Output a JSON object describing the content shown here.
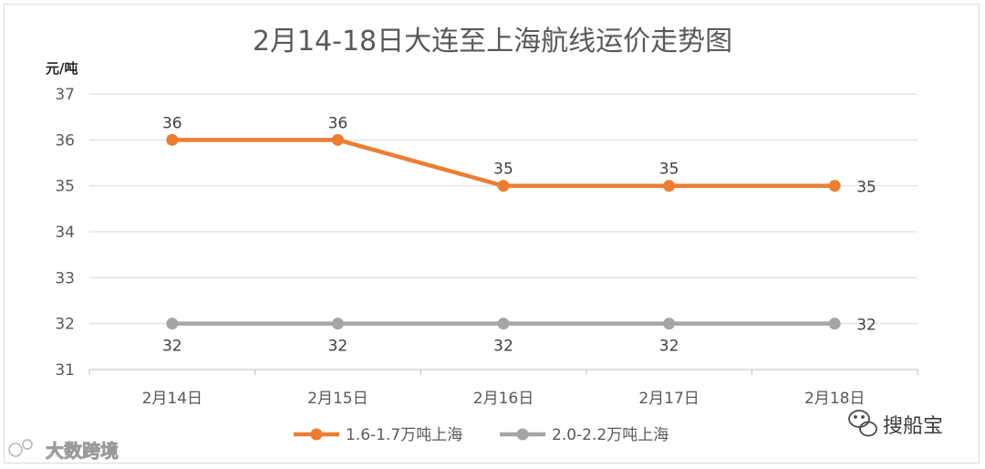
{
  "chart_data": {
    "type": "line",
    "title": "2月14-18日大连至上海航线运价走势图",
    "ylabel": "元/吨",
    "categories": [
      "2月14日",
      "2月15日",
      "2月16日",
      "2月17日",
      "2月18日"
    ],
    "ylim": [
      31,
      37
    ],
    "yticks": [
      "31",
      "32",
      "33",
      "34",
      "35",
      "36",
      "37"
    ],
    "grid": true,
    "legend_position": "bottom",
    "series": [
      {
        "name": "1.6-1.7万吨上海",
        "values": [
          36,
          36,
          35,
          35,
          35
        ],
        "color": "#ED7D31",
        "labels": [
          "36",
          "36",
          "35",
          "35",
          "35"
        ]
      },
      {
        "name": "2.0-2.2万吨上海",
        "values": [
          32,
          32,
          32,
          32,
          32
        ],
        "color": "#A5A5A5",
        "labels": [
          "32",
          "32",
          "32",
          "32",
          "32"
        ]
      }
    ]
  },
  "watermark_left": "大数跨境",
  "watermark_right": "搜船宝"
}
